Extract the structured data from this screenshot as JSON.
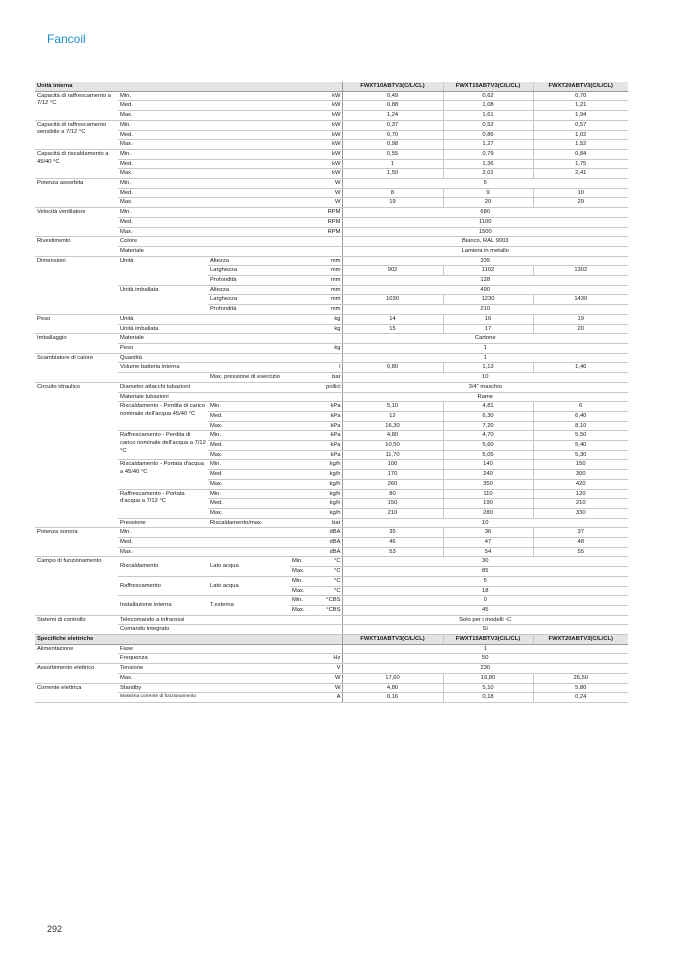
{
  "title": "Fancoil",
  "page_number": "292",
  "table": {
    "rows": [
      {
        "header": true,
        "label": "Unità interna",
        "models": [
          "FWXT10ABTV3(C/L/CL)",
          "FWXT15ABTV3(C/L/CL)",
          "FWXT20ABTV3(C/L/CL)"
        ]
      },
      {
        "c": [
          "Capacità di raffrescamento a 7/12 °C",
          "Min.",
          "",
          "",
          "kW"
        ],
        "v": [
          "0,49",
          "0,62",
          "0,70"
        ]
      },
      {
        "c": [
          null,
          "Med.",
          "",
          "",
          "kW"
        ],
        "v": [
          "0,88",
          "1,08",
          "1,21"
        ]
      },
      {
        "c": [
          null,
          "Max.",
          "",
          "",
          "kW"
        ],
        "v": [
          "1,24",
          "1,61",
          "1,94"
        ]
      },
      {
        "c": [
          "Capacità di raffrescamento sensibile a 7/12 °C",
          "Min.",
          "",
          "",
          "kW"
        ],
        "v": [
          "0,37",
          "0,52",
          "0,57"
        ]
      },
      {
        "c": [
          null,
          "Med.",
          "",
          "",
          "kW"
        ],
        "v": [
          "0,70",
          "0,86",
          "1,02"
        ]
      },
      {
        "c": [
          null,
          "Max.",
          "",
          "",
          "kW"
        ],
        "v": [
          "0,98",
          "1,27",
          "1,52"
        ]
      },
      {
        "c": [
          "Capacità di riscaldamento a 45/40 °C",
          "Min.",
          "",
          "",
          "kW"
        ],
        "v": [
          "0,55",
          "0,79",
          "0,84"
        ]
      },
      {
        "c": [
          null,
          "Med.",
          "",
          "",
          "kW"
        ],
        "v": [
          "1",
          "1,36",
          "1,75"
        ]
      },
      {
        "c": [
          null,
          "Max.",
          "",
          "",
          "kW"
        ],
        "v": [
          "1,50",
          "2,01",
          "2,41"
        ]
      },
      {
        "c": [
          "Potenza assorbita",
          "Min.",
          "",
          "",
          "W"
        ],
        "v": "5"
      },
      {
        "c": [
          null,
          "Med.",
          "",
          "",
          "W"
        ],
        "v": [
          "8",
          "9",
          "10"
        ]
      },
      {
        "c": [
          null,
          "Max.",
          "",
          "",
          "W"
        ],
        "v": [
          "19",
          "20",
          "29"
        ]
      },
      {
        "c": [
          "Velocità ventilatore",
          "Min.",
          "",
          "",
          "RPM"
        ],
        "v": "680"
      },
      {
        "c": [
          null,
          "Med.",
          "",
          "",
          "RPM"
        ],
        "v": "1100"
      },
      {
        "c": [
          null,
          "Max.",
          "",
          "",
          "RPM"
        ],
        "v": "1500"
      },
      {
        "c": [
          "Rivestimento",
          "Colore",
          "",
          "",
          ""
        ],
        "v": "Bianco, RAL 9003"
      },
      {
        "c": [
          null,
          "Materiale",
          "",
          "",
          ""
        ],
        "v": "Lamiera in metallo"
      },
      {
        "c": [
          "Dimensioni",
          "Unità",
          "Altezza",
          "",
          "mm"
        ],
        "v": "335"
      },
      {
        "c": [
          null,
          null,
          "Larghezza",
          "",
          "mm"
        ],
        "v": [
          "902",
          "1102",
          "1302"
        ]
      },
      {
        "c": [
          null,
          null,
          "Profondità",
          "",
          "mm"
        ],
        "v": "128"
      },
      {
        "c": [
          null,
          "Unità imballata",
          "Altezza",
          "",
          "mm"
        ],
        "v": "490"
      },
      {
        "c": [
          null,
          null,
          "Larghezza",
          "",
          "mm"
        ],
        "v": [
          "1030",
          "1230",
          "1430"
        ]
      },
      {
        "c": [
          null,
          null,
          "Profondità",
          "",
          "mm"
        ],
        "v": "210"
      },
      {
        "c": [
          "Peso",
          "Unità",
          "",
          "",
          "kg"
        ],
        "v": [
          "14",
          "16",
          "19"
        ]
      },
      {
        "c": [
          null,
          "Unità imballata",
          "",
          "",
          "kg"
        ],
        "v": [
          "15",
          "17",
          "20"
        ]
      },
      {
        "c": [
          "Imballaggio",
          "Materiale",
          "",
          "",
          ""
        ],
        "v": "Cartone"
      },
      {
        "c": [
          null,
          "Peso",
          "",
          "",
          "kg"
        ],
        "v": "1"
      },
      {
        "c": [
          "Scambiatore di calore",
          "Quantità",
          "",
          "",
          ""
        ],
        "v": "1"
      },
      {
        "c": [
          null,
          "Volume batteria interna",
          "",
          "",
          "l"
        ],
        "v": [
          "0,80",
          "1,13",
          "1,46"
        ]
      },
      {
        "c": [
          null,
          "",
          "Max. pressione di esercizio",
          "",
          "bar"
        ],
        "v": "10"
      },
      {
        "c": [
          "Circuito idraulico",
          "Diametro attacchi tubazioni",
          "",
          "",
          "pollici"
        ],
        "v": "3/4\" maschio"
      },
      {
        "c": [
          null,
          "Materiale tubazioni",
          "",
          "",
          ""
        ],
        "v": "Rame"
      },
      {
        "c": [
          null,
          "Riscaldamento - Perdita di carico nominale dell'acqua 45/40 °C",
          "Min.",
          "",
          "kPa"
        ],
        "v": [
          "5,10",
          "4,81",
          "6"
        ]
      },
      {
        "c": [
          null,
          null,
          "Med.",
          "",
          "kPa"
        ],
        "v": [
          "12",
          "6,30",
          "6,40"
        ]
      },
      {
        "c": [
          null,
          null,
          "Max.",
          "",
          "kPa"
        ],
        "v": [
          "16,30",
          "7,20",
          "8,10"
        ]
      },
      {
        "c": [
          null,
          "Raffrescamento - Perdita di carico nominale dell'acqua a 7/12 °C",
          "Min.",
          "",
          "kPa"
        ],
        "v": [
          "4,80",
          "4,70",
          "5,50"
        ]
      },
      {
        "c": [
          null,
          null,
          "Med.",
          "",
          "kPa"
        ],
        "v": [
          "10,50",
          "5,60",
          "5,40"
        ]
      },
      {
        "c": [
          null,
          null,
          "Max.",
          "",
          "kPa"
        ],
        "v": [
          "11,70",
          "5,05",
          "5,30"
        ]
      },
      {
        "c": [
          null,
          "Riscaldamento - Portata d'acqua a 45/40 °C",
          "Min.",
          "",
          "kg/h"
        ],
        "v": [
          "100",
          "140",
          "150"
        ]
      },
      {
        "c": [
          null,
          null,
          "Med.",
          "",
          "kg/h"
        ],
        "v": [
          "170",
          "240",
          "300"
        ]
      },
      {
        "c": [
          null,
          null,
          "Max.",
          "",
          "kg/h"
        ],
        "v": [
          "260",
          "350",
          "420"
        ]
      },
      {
        "c": [
          null,
          "Raffrescamento - Portata d'acqua a 7/12 °C",
          "Min.",
          "",
          "kg/h"
        ],
        "v": [
          "80",
          "110",
          "120"
        ]
      },
      {
        "c": [
          null,
          null,
          "Med.",
          "",
          "kg/h"
        ],
        "v": [
          "150",
          "190",
          "210"
        ]
      },
      {
        "c": [
          null,
          null,
          "Max.",
          "",
          "kg/h"
        ],
        "v": [
          "210",
          "280",
          "330"
        ]
      },
      {
        "c": [
          null,
          "Pressione",
          "Riscaldamento/max.",
          "",
          "bar"
        ],
        "v": "10"
      },
      {
        "c": [
          "Potenza sonora",
          "Min.",
          "",
          "",
          "dBA"
        ],
        "v": [
          "35",
          "36",
          "37"
        ]
      },
      {
        "c": [
          null,
          "Med.",
          "",
          "",
          "dBA"
        ],
        "v": [
          "46",
          "47",
          "48"
        ]
      },
      {
        "c": [
          null,
          "Max.",
          "",
          "",
          "dBA"
        ],
        "v": [
          "53",
          "54",
          "55"
        ]
      },
      {
        "c": [
          "Campo di funzionamento",
          "Riscaldamento",
          "Lato acqua",
          "Min.",
          "°C"
        ],
        "v": "30"
      },
      {
        "c": [
          null,
          null,
          null,
          "Max.",
          "°C"
        ],
        "v": "85"
      },
      {
        "c": [
          null,
          "Raffrescamento",
          "Lato acqua",
          "Min.",
          "°C"
        ],
        "v": "5"
      },
      {
        "c": [
          null,
          null,
          null,
          "Max.",
          "°C"
        ],
        "v": "18"
      },
      {
        "c": [
          null,
          "Installazione interna",
          "T.esterna",
          "Min.",
          "°CBS"
        ],
        "v": "0"
      },
      {
        "c": [
          null,
          null,
          null,
          "Max.",
          "°CBS"
        ],
        "v": "45"
      },
      {
        "c": [
          "Sistemi di controllo",
          "Telecomando a infrarossi",
          "",
          "",
          ""
        ],
        "v": "Solo per i modelli -C"
      },
      {
        "c": [
          null,
          "Comando integrato",
          "",
          "",
          ""
        ],
        "v": "Sì"
      },
      {
        "header": true,
        "label": "Specifiche elettriche",
        "models": [
          "FWXT10ABTV3(C/L/CL)",
          "FWXT15ABTV3(C/L/CL)",
          "FWXT20ABTV3(C/L/CL)"
        ]
      },
      {
        "c": [
          "Alimentazione",
          "Fase",
          "",
          "",
          ""
        ],
        "v": "1"
      },
      {
        "c": [
          null,
          "Frequenza",
          "",
          "",
          "Hz"
        ],
        "v": "50"
      },
      {
        "c": [
          "Assorbimento elettrico",
          "Tensione",
          "",
          "",
          "V"
        ],
        "v": "230"
      },
      {
        "c": [
          null,
          "Max.",
          "",
          "",
          "W"
        ],
        "v": [
          "17,60",
          "19,80",
          "26,50"
        ]
      },
      {
        "c": [
          "Corrente elettrica",
          "Standby",
          "",
          "",
          "W"
        ],
        "v": [
          "4,80",
          "5,10",
          "5,80"
        ]
      },
      {
        "c": [
          null,
          "Massima corrente di funzionamento",
          "",
          "",
          "A"
        ],
        "v": [
          "0,16",
          "0,18",
          "0,24"
        ],
        "small_label": true
      }
    ]
  }
}
